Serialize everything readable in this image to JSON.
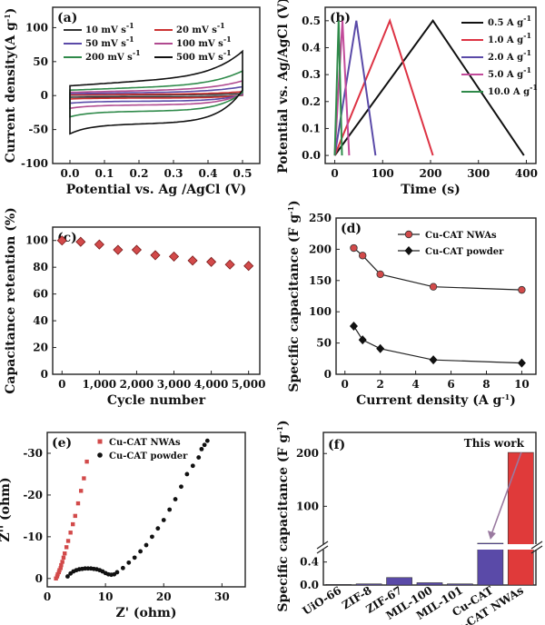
{
  "chart_data": [
    {
      "id": "a",
      "type": "line",
      "panel_label": "(a)",
      "xlabel": "Potential vs. Ag /AgCl (V)",
      "ylabel": "Current density(A g",
      "ylabel_sup": "-1",
      "ylabel_end": ")",
      "xlim": [
        -0.05,
        0.55
      ],
      "ylim": [
        -100,
        130
      ],
      "xticks": [
        0.0,
        0.1,
        0.2,
        0.3,
        0.4,
        0.5
      ],
      "xticklabels": [
        "0.0",
        "0.1",
        "0.2",
        "0.3",
        "0.4",
        "0.5"
      ],
      "yticks": [
        -100,
        -50,
        0,
        50,
        100
      ],
      "yticklabels": [
        "-100",
        "-50",
        "0",
        "50",
        "100"
      ],
      "series": [
        {
          "name": "10 mV s",
          "name_sup": "-1",
          "color": "#333333",
          "amp": 2
        },
        {
          "name": "20 mV s",
          "name_sup": "-1",
          "color": "#cc3333",
          "amp": 4
        },
        {
          "name": "50 mV s",
          "name_sup": "-1",
          "color": "#5a4aa8",
          "amp": 9
        },
        {
          "name": "100 mV s",
          "name_sup": "-1",
          "color": "#b04a90",
          "amp": 15
        },
        {
          "name": "200 mV s",
          "name_sup": "-1",
          "color": "#2f8a4a",
          "amp": 25
        },
        {
          "name": "500 mV s",
          "name_sup": "-1",
          "color": "#111111",
          "amp": 45
        }
      ]
    },
    {
      "id": "b",
      "type": "line",
      "panel_label": "(b)",
      "xlabel": "Time (s)",
      "ylabel": "Potential vs. Ag/AgCl (V)",
      "xlim": [
        -20,
        420
      ],
      "ylim": [
        -0.03,
        0.55
      ],
      "xticks": [
        0,
        100,
        200,
        300,
        400
      ],
      "xticklabels": [
        "0",
        "100",
        "200",
        "300",
        "400"
      ],
      "yticks": [
        0.0,
        0.1,
        0.2,
        0.3,
        0.4,
        0.5
      ],
      "yticklabels": [
        "0.0",
        "0.1",
        "0.2",
        "0.3",
        "0.4",
        "0.5"
      ],
      "series": [
        {
          "name": "0.5 A g",
          "name_sup": "-1",
          "color": "#111111",
          "x": [
            0,
            205,
            395
          ],
          "y": [
            0,
            0.5,
            0
          ]
        },
        {
          "name": "1.0 A g",
          "name_sup": "-1",
          "color": "#dd3344",
          "x": [
            0,
            115,
            205
          ],
          "y": [
            0,
            0.5,
            0
          ]
        },
        {
          "name": "2.0 A g",
          "name_sup": "-1",
          "color": "#5a4aa8",
          "x": [
            0,
            45,
            85
          ],
          "y": [
            0,
            0.5,
            0
          ]
        },
        {
          "name": "5.0 A g",
          "name_sup": "-1",
          "color": "#c24a9a",
          "x": [
            0,
            16,
            30
          ],
          "y": [
            0,
            0.5,
            0
          ]
        },
        {
          "name": "10.0 A g",
          "name_sup": "-1",
          "color": "#2f8a4a",
          "x": [
            0,
            8,
            15
          ],
          "y": [
            0,
            0.5,
            0
          ]
        }
      ]
    },
    {
      "id": "c",
      "type": "scatter",
      "panel_label": "(c)",
      "xlabel": "Cycle number",
      "ylabel": "Capacitance retention (%)",
      "xlim": [
        -250,
        5300
      ],
      "ylim": [
        0,
        110
      ],
      "xticks": [
        0,
        1000,
        2000,
        3000,
        4000,
        5000
      ],
      "xticklabels": [
        "0",
        "1,000",
        "2,000",
        "3,000",
        "4,000",
        "5,000"
      ],
      "yticks": [
        0,
        20,
        40,
        60,
        80,
        100
      ],
      "yticklabels": [
        "0",
        "20",
        "40",
        "60",
        "80",
        "100"
      ],
      "series": [
        {
          "color": "#d24a4a",
          "x": [
            0,
            500,
            1000,
            1500,
            2000,
            2500,
            3000,
            3500,
            4000,
            4500,
            5000
          ],
          "y": [
            100,
            99,
            97,
            93,
            93,
            89,
            88,
            85,
            84,
            82,
            81
          ]
        }
      ]
    },
    {
      "id": "d",
      "type": "line",
      "panel_label": "(d)",
      "xlabel": "Current density (A g",
      "xlabel_sup": "-1",
      "xlabel_end": ")",
      "ylabel": "Specific capacitance (F g",
      "ylabel_sup": "-1",
      "ylabel_end": ")",
      "xlim": [
        -0.5,
        10.8
      ],
      "ylim": [
        0,
        250
      ],
      "xticks": [
        0,
        2,
        4,
        6,
        8,
        10
      ],
      "xticklabels": [
        "0",
        "2",
        "4",
        "6",
        "8",
        "10"
      ],
      "yticks": [
        0,
        50,
        100,
        150,
        200,
        250
      ],
      "yticklabels": [
        "0",
        "50",
        "100",
        "150",
        "200",
        "250"
      ],
      "series": [
        {
          "name": "Cu-CAT NWAs",
          "color": "#d24a4a",
          "marker": "circle",
          "x": [
            0.5,
            1,
            2,
            5,
            10
          ],
          "y": [
            202,
            190,
            160,
            140,
            135
          ]
        },
        {
          "name": "Cu-CAT powder",
          "color": "#111111",
          "marker": "diamond",
          "x": [
            0.5,
            1,
            2,
            5,
            10
          ],
          "y": [
            77,
            55,
            41,
            23,
            18
          ]
        }
      ]
    },
    {
      "id": "e",
      "type": "scatter",
      "panel_label": "(e)",
      "xlabel": "Z' (ohm)",
      "ylabel": "Z'' (ohm)",
      "xlim": [
        0,
        34
      ],
      "ylim": [
        2,
        -35
      ],
      "xticks": [
        0,
        10,
        20,
        30
      ],
      "xticklabels": [
        "0",
        "10",
        "20",
        "30"
      ],
      "yticks": [
        0,
        -10,
        -20,
        -30
      ],
      "yticklabels": [
        "0",
        "-10",
        "-20",
        "-30"
      ],
      "series": [
        {
          "name": "Cu-CAT NWAs",
          "color": "#d24a4a",
          "marker": "square",
          "x": [
            1.5,
            1.7,
            1.8,
            2.0,
            2.1,
            2.3,
            2.4,
            2.6,
            2.8,
            3.0,
            3.3,
            3.6,
            4.0,
            4.4,
            4.8,
            5.3,
            5.8,
            6.3,
            6.8
          ],
          "y": [
            0,
            -0.5,
            -1,
            -1.5,
            -2,
            -2.5,
            -3.2,
            -4,
            -5,
            -6,
            -7.5,
            -9,
            -11,
            -13,
            -15,
            -18,
            -21,
            -24,
            -28
          ]
        },
        {
          "name": "Cu-CAT powder",
          "color": "#111111",
          "marker": "circle",
          "x": [
            3.5,
            4.0,
            4.5,
            5.0,
            5.5,
            6.0,
            6.5,
            7.0,
            7.5,
            8.0,
            8.5,
            9.0,
            9.5,
            10.0,
            10.5,
            11.0,
            11.5,
            12.0,
            13.0,
            14.0,
            15.0,
            16.0,
            17.0,
            18.0,
            19.0,
            20.0,
            21.0,
            22.0,
            23.0,
            24.0,
            25.0,
            26.0,
            26.5,
            27.0,
            27.5
          ],
          "y": [
            -0.5,
            -1.2,
            -1.7,
            -2.0,
            -2.2,
            -2.3,
            -2.4,
            -2.4,
            -2.4,
            -2.3,
            -2.2,
            -2.0,
            -1.7,
            -1.3,
            -1.0,
            -0.9,
            -1.0,
            -1.5,
            -2.5,
            -3.8,
            -5,
            -6.5,
            -8,
            -10,
            -12,
            -14,
            -16.5,
            -19,
            -22,
            -25,
            -27,
            -29,
            -31,
            -32,
            -33
          ]
        }
      ]
    },
    {
      "id": "f",
      "type": "bar",
      "panel_label": "(f)",
      "ylabel": "Specific capacitance (F g",
      "ylabel_sup": "-1",
      "ylabel_end": ")",
      "categories": [
        "UiO-66",
        "ZIF-8",
        "ZIF-67",
        "MIL-100",
        "MIL-101",
        "Cu-CAT",
        "Cu-CAT NWAs"
      ],
      "values": [
        0.01,
        0.02,
        0.13,
        0.04,
        0.02,
        30,
        202
      ],
      "colors": [
        "#5a4aa8",
        "#5a4aa8",
        "#5a4aa8",
        "#5a4aa8",
        "#5a4aa8",
        "#5a4aa8",
        "#e03a3a"
      ],
      "upper_ylim": [
        0,
        240
      ],
      "upper_yticks": [
        100,
        200
      ],
      "upper_yticklabels": [
        "100",
        "200"
      ],
      "lower_ylim": [
        0,
        0.6
      ],
      "lower_yticks": [
        0.0,
        0.4
      ],
      "lower_yticklabels": [
        "0.0",
        "0.4"
      ],
      "annotation": "This work"
    }
  ]
}
